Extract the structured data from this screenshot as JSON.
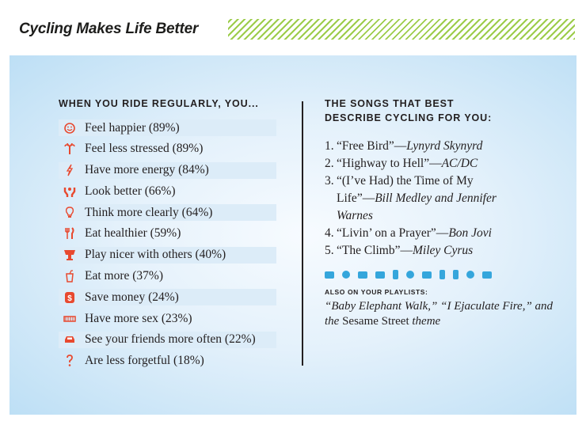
{
  "header": {
    "title": "Cycling Makes Life Better"
  },
  "left": {
    "heading": "WHEN YOU RIDE REGULARLY, YOU...",
    "items": [
      {
        "label": "Feel happier (89%)",
        "icon": "smiley-icon"
      },
      {
        "label": "Feel less stressed (89%)",
        "icon": "palm-tree-icon"
      },
      {
        "label": "Have more energy (84%)",
        "icon": "lightning-icon"
      },
      {
        "label": "Look better (66%)",
        "icon": "muscle-arms-icon"
      },
      {
        "label": "Think more clearly (64%)",
        "icon": "lightbulb-icon"
      },
      {
        "label": "Eat healthier (59%)",
        "icon": "fork-knife-icon"
      },
      {
        "label": "Play nicer with others (40%)",
        "icon": "trophy-icon"
      },
      {
        "label": "Eat more (37%)",
        "icon": "drink-cup-icon"
      },
      {
        "label": "Save money (24%)",
        "icon": "money-icon"
      },
      {
        "label": "Have more sex (23%)",
        "icon": "bed-icon"
      },
      {
        "label": "See your friends more often (22%)",
        "icon": "car-icon"
      },
      {
        "label": "Are less forgetful (18%)",
        "icon": "question-mark-icon"
      }
    ],
    "icon_color": "#e8492f",
    "stripe_color": "#dcecf8"
  },
  "right": {
    "heading_line1": "THE SONGS THAT BEST",
    "heading_line2": "DESCRIBE CYCLING FOR YOU:",
    "songs": [
      {
        "num": "1.",
        "title": "“Free Bird”—",
        "artist": "Lynyrd Skynyrd"
      },
      {
        "num": "2.",
        "title": "“Highway to Hell”—",
        "artist": "AC/DC"
      },
      {
        "num": "3.",
        "title": "“(I’ve Had) the Time of My Life”—",
        "artist": "Bill Medley and Jennifer Warnes"
      },
      {
        "num": "4.",
        "title": "“Livin’ on a Prayer”—",
        "artist": "Bon Jovi"
      },
      {
        "num": "5.",
        "title": "“The Climb”—",
        "artist": "Miley Cyrus"
      }
    ],
    "icon_strip": [
      "radio-icon",
      "clock-icon",
      "radio-icon",
      "speaker-icon",
      "phone-icon",
      "clock-icon",
      "radio-icon",
      "speaker-icon",
      "phone-icon",
      "clock-icon",
      "radio-icon"
    ],
    "icon_strip_color": "#35a6dc",
    "also_heading": "ALSO ON YOUR PLAYLISTS:",
    "also_part1": "“Baby Elephant Walk,” “I Ejaculate Fire,” and the ",
    "also_part2": "Sesame Street",
    "also_part3": " theme"
  }
}
